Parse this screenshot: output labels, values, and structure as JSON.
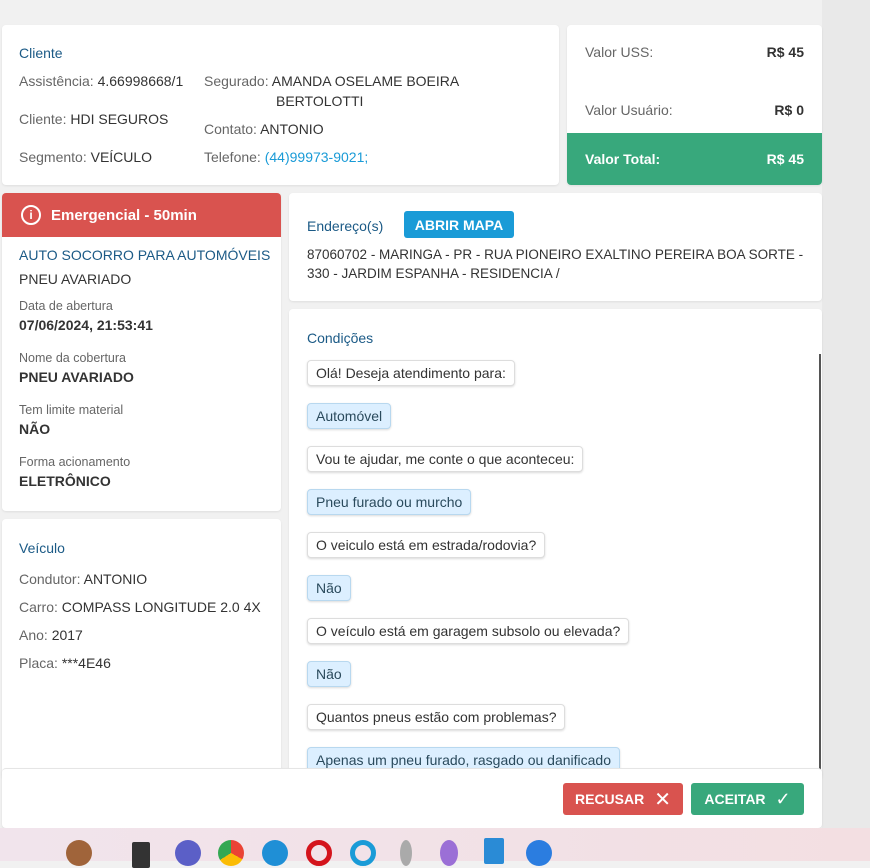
{
  "cliente": {
    "title": "Cliente",
    "assistencia_label": "Assistência:",
    "assistencia": "4.66998668/1",
    "cliente_label": "Cliente:",
    "cliente": "HDI SEGUROS",
    "segmento_label": "Segmento:",
    "segmento": "VEÍCULO",
    "segurado_label": "Segurado:",
    "segurado_1": "AMANDA OSELAME BOEIRA",
    "segurado_2": "BERTOLOTTI",
    "contato_label": "Contato:",
    "contato": "ANTONIO",
    "telefone_label": "Telefone:",
    "telefone": "(44)99973-9021;"
  },
  "valores": {
    "uss_label": "Valor USS:",
    "uss": "R$ 45",
    "usuario_label": "Valor Usuário:",
    "usuario": "R$ 0",
    "total_label": "Valor Total:",
    "total": "R$ 45",
    "total_color": "#38a87c"
  },
  "servico": {
    "badge": "Emergencial - 50min",
    "badge_color": "#d9534f",
    "title": "AUTO SOCORRO PARA AUTOMÓVEIS",
    "subtitle": "PNEU AVARIADO",
    "fields": [
      {
        "label": "Data de abertura",
        "value": "07/06/2024, 21:53:41"
      },
      {
        "label": "Nome da cobertura",
        "value": "PNEU AVARIADO"
      },
      {
        "label": "Tem limite material",
        "value": "NÃO"
      },
      {
        "label": "Forma acionamento",
        "value": "ELETRÔNICO"
      }
    ]
  },
  "veiculo": {
    "title": "Veículo",
    "condutor_label": "Condutor:",
    "condutor": "ANTONIO",
    "carro_label": "Carro:",
    "carro": "COMPASS LONGITUDE 2.0 4X",
    "ano_label": "Ano:",
    "ano": "2017",
    "placa_label": "Placa:",
    "placa": "***4E46"
  },
  "endereco": {
    "title": "Endereço(s)",
    "map_button": "ABRIR MAPA",
    "line1": "87060702 - MARINGA - PR - RUA PIONEIRO EXALTINO PEREIRA BOA SORTE -",
    "line2": "330 - JARDIM ESPANHA - RESIDENCIA /"
  },
  "condicoes": {
    "title": "Condições",
    "messages": [
      {
        "text": "Olá! Deseja atendimento para:",
        "answer": false
      },
      {
        "text": "Automóvel",
        "answer": true
      },
      {
        "text": "Vou te ajudar, me conte o que aconteceu:",
        "answer": false
      },
      {
        "text": "Pneu furado ou murcho",
        "answer": true
      },
      {
        "text": "O veiculo está em estrada/rodovia?",
        "answer": false
      },
      {
        "text": "Não",
        "answer": true
      },
      {
        "text": "O veículo está em garagem subsolo ou elevada?",
        "answer": false
      },
      {
        "text": "Não",
        "answer": true
      },
      {
        "text": "Quantos pneus estão com problemas?",
        "answer": false
      },
      {
        "text": "Apenas um pneu furado, rasgado ou danificado",
        "answer": true
      }
    ]
  },
  "actions": {
    "recusar": "RECUSAR",
    "aceitar": "ACEITAR"
  }
}
